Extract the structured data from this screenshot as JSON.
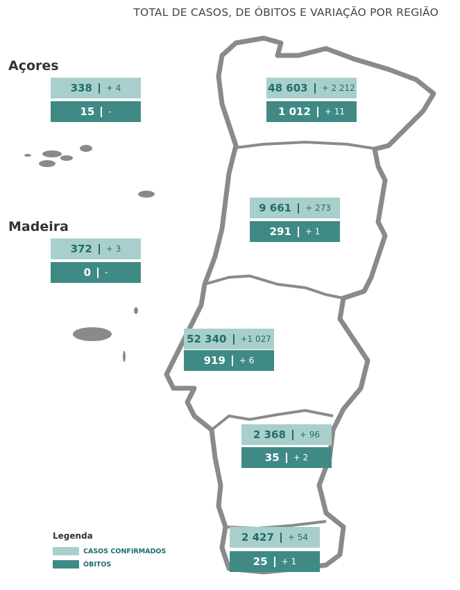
{
  "title": "TOTAL DE CASOS, DE ÓBITOS E VARIAÇÃO POR REGIÃO",
  "regions": [
    {
      "name": "Açores",
      "cases": "338",
      "cases_change": "+ 4",
      "deaths": "15",
      "deaths_change": "-"
    },
    {
      "cases": "48 603",
      "cases_change": "+ 2 212",
      "deaths": "1 012",
      "deaths_change": "+ 11"
    },
    {
      "cases": "9 661",
      "cases_change": "+ 273",
      "deaths": "291",
      "deaths_change": "+ 1"
    },
    {
      "name": "Madeira",
      "cases": "372",
      "cases_change": "+ 3",
      "deaths": "0",
      "deaths_change": "-"
    },
    {
      "cases": "52 340",
      "cases_change": "+1 027",
      "deaths": "919",
      "deaths_change": "+ 6"
    },
    {
      "cases": "2 368",
      "cases_change": "+ 96",
      "deaths": "35",
      "deaths_change": "+ 2"
    },
    {
      "cases": "2 427",
      "cases_change": "+ 54",
      "deaths": "25",
      "deaths_change": "+ 1"
    }
  ],
  "legend": {
    "title": "Legenda",
    "items": [
      "CASOS CONFIRMADOS",
      "ÓBITOS"
    ]
  }
}
